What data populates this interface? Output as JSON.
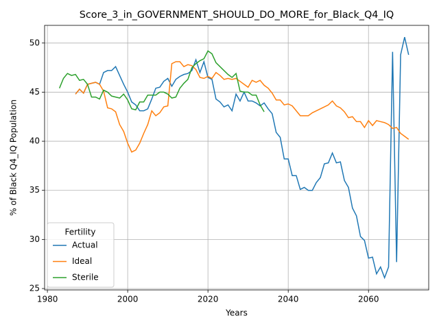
{
  "chart_data": {
    "type": "line",
    "title": "Score_3_in_GOVERNMENT_SHOULD_DO_MORE_for_Black_Q4_IQ",
    "x_label": "Years",
    "y_label": "% of Black Q4_IQ Population",
    "legend_title": "Fertility",
    "legend": "lower left",
    "grid": true,
    "xlim": [
      1979.3,
      2075
    ],
    "ylim": [
      24.86,
      51.8
    ],
    "xticks": [
      1980,
      2000,
      2020,
      2040,
      2060
    ],
    "yticks": [
      25,
      30,
      35,
      40,
      45,
      50
    ],
    "x": [
      1983,
      1984,
      1985,
      1986,
      1987,
      1988,
      1989,
      1990,
      1991,
      1992,
      1993,
      1994,
      1995,
      1996,
      1997,
      1998,
      1999,
      2000,
      2001,
      2002,
      2003,
      2004,
      2005,
      2006,
      2007,
      2008,
      2009,
      2010,
      2011,
      2012,
      2013,
      2014,
      2015,
      2016,
      2017,
      2018,
      2019,
      2020,
      2021,
      2022,
      2023,
      2024,
      2025,
      2026,
      2027,
      2028,
      2029,
      2030,
      2031,
      2032,
      2033,
      2034,
      2035,
      2036,
      2037,
      2038,
      2039,
      2040,
      2041,
      2042,
      2043,
      2044,
      2045,
      2046,
      2047,
      2048,
      2049,
      2050,
      2051,
      2052,
      2053,
      2054,
      2055,
      2056,
      2057,
      2058,
      2059,
      2060,
      2061,
      2062,
      2063,
      2064,
      2065,
      2066,
      2067,
      2068,
      2069,
      2070
    ],
    "series": [
      {
        "name": "Actual",
        "color": "#1f77b4",
        "values": [
          null,
          null,
          null,
          null,
          44.8,
          45.3,
          44.9,
          45.8,
          45.9,
          46.0,
          45.8,
          47.0,
          47.2,
          47.2,
          47.6,
          46.7,
          45.8,
          45.0,
          44.0,
          43.7,
          43.1,
          43.1,
          43.3,
          44.3,
          45.4,
          45.5,
          46.1,
          46.4,
          45.6,
          46.3,
          46.6,
          46.8,
          46.9,
          47.2,
          48.3,
          47.0,
          48.1,
          46.5,
          46.3,
          44.3,
          44.0,
          43.5,
          43.7,
          43.1,
          44.8,
          44.1,
          45.0,
          44.1,
          44.1,
          43.9,
          43.6,
          43.9,
          43.3,
          42.8,
          40.9,
          40.4,
          38.2,
          38.2,
          36.5,
          36.5,
          35.1,
          35.3,
          35.0,
          35.0,
          35.8,
          36.3,
          37.7,
          37.8,
          38.8,
          37.8,
          37.9,
          36.0,
          35.3,
          33.2,
          32.4,
          30.3,
          29.9,
          28.1,
          28.2,
          26.5,
          27.2,
          26.1,
          27.2,
          49.1,
          27.7,
          48.8,
          50.6,
          48.8
        ]
      },
      {
        "name": "Ideal",
        "color": "#ff7f0e",
        "values": [
          null,
          null,
          null,
          null,
          44.8,
          45.3,
          44.9,
          45.8,
          45.9,
          46.0,
          45.8,
          45.1,
          43.4,
          43.3,
          43.0,
          41.7,
          41.0,
          39.8,
          38.9,
          39.1,
          39.8,
          40.8,
          41.7,
          43.1,
          42.6,
          42.9,
          43.5,
          43.6,
          47.9,
          48.1,
          48.1,
          47.6,
          47.8,
          47.7,
          47.3,
          46.5,
          46.4,
          46.6,
          46.4,
          47.0,
          46.7,
          46.3,
          46.4,
          46.3,
          46.4,
          46.1,
          45.8,
          45.5,
          46.2,
          46.0,
          46.2,
          45.7,
          45.4,
          44.9,
          44.2,
          44.2,
          43.7,
          43.8,
          43.6,
          43.1,
          42.6,
          42.6,
          42.6,
          42.9,
          43.1,
          43.3,
          43.5,
          43.7,
          44.1,
          43.6,
          43.4,
          43.0,
          42.4,
          42.5,
          42.0,
          42.0,
          41.4,
          42.1,
          41.6,
          42.1,
          42.0,
          41.9,
          41.7,
          41.3,
          41.4,
          40.8,
          40.5,
          40.2
        ]
      },
      {
        "name": "Sterile",
        "color": "#2ca02c",
        "values": [
          45.4,
          46.4,
          46.9,
          46.7,
          46.8,
          46.2,
          46.3,
          45.8,
          44.5,
          44.5,
          44.3,
          45.2,
          45.0,
          44.6,
          44.5,
          44.4,
          44.8,
          44.2,
          43.3,
          43.2,
          44.0,
          44.0,
          44.7,
          44.7,
          44.7,
          45.0,
          45.0,
          44.8,
          44.4,
          44.5,
          45.4,
          45.9,
          46.3,
          47.5,
          47.9,
          48.2,
          48.4,
          49.2,
          48.9,
          48.0,
          47.6,
          47.2,
          46.8,
          46.5,
          46.9,
          45.1,
          45.0,
          45.0,
          44.7,
          44.7,
          43.7,
          43.0,
          null,
          null,
          null,
          null,
          null,
          null,
          null,
          null,
          null,
          null,
          null,
          null,
          null,
          null,
          null,
          null,
          null,
          null,
          null,
          null,
          null,
          null,
          null,
          null,
          null,
          null,
          null,
          null,
          null,
          null,
          null,
          null,
          null,
          null,
          null,
          null
        ]
      }
    ]
  }
}
